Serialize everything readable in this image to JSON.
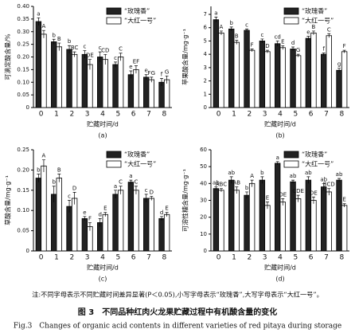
{
  "chart_data": [
    {
      "type": "bar",
      "panel": "(a)",
      "ylabel": "可滴定酸含量/%",
      "xlabel": "贮藏时间/d",
      "categories": [
        "0",
        "1",
        "2",
        "3",
        "4",
        "5",
        "6",
        "7",
        "8"
      ],
      "ylim": [
        0,
        0.4
      ],
      "yticks": [
        0,
        0.05,
        {
          "value": 0.1,
          "label": "0.10"
        },
        0.15,
        {
          "value": 0.2,
          "label": "0.20"
        },
        0.25,
        {
          "value": 0.3,
          "label": "0.30"
        },
        0.35,
        {
          "value": 0.4,
          "label": "0.40"
        }
      ],
      "legend": "upper right",
      "series": [
        {
          "name": "“玫瑰香”",
          "color": "#222222",
          "values": [
            0.34,
            0.26,
            0.23,
            0.21,
            0.2,
            0.17,
            0.13,
            0.12,
            0.1
          ],
          "errors": [
            0.015,
            0.01,
            0.015,
            0.015,
            0.02,
            0.01,
            0.015,
            0.01,
            0.015
          ],
          "letters": [
            "a",
            "b",
            "b",
            "c",
            "c",
            "c",
            "e",
            "e",
            "f"
          ]
        },
        {
          "name": "“大红一号”",
          "color": "#ffffff",
          "values": [
            0.29,
            0.24,
            0.21,
            0.17,
            0.19,
            0.2,
            0.15,
            0.11,
            0.11
          ],
          "errors": [
            0.015,
            0.015,
            0.01,
            0.02,
            0.02,
            0.015,
            0.015,
            0.01,
            0.015
          ],
          "letters": [
            "A",
            "B",
            "BC",
            "DE",
            "CD",
            "C",
            "EF",
            "FG",
            "G"
          ]
        }
      ]
    },
    {
      "type": "bar",
      "panel": "(b)",
      "ylabel": "苹果酸含量/mg·g⁻¹",
      "xlabel": "贮藏时间/d",
      "categories": [
        "0",
        "1",
        "2",
        "3",
        "4",
        "5",
        "6",
        "7",
        "8"
      ],
      "ylim": [
        0,
        7.6
      ],
      "yticks": [
        0,
        1,
        2,
        3,
        4,
        5,
        6,
        7
      ],
      "legend": "upper right",
      "series": [
        {
          "name": "“玫瑰香”",
          "color": "#222222",
          "values": [
            6.6,
            5.9,
            5.8,
            5.0,
            4.8,
            4.4,
            5.2,
            4.0,
            2.8
          ],
          "errors": [
            0.2,
            0.15,
            0.1,
            0.15,
            0.2,
            0.15,
            0.15,
            0.1,
            0.15
          ],
          "letters": [
            "a",
            "b",
            "c",
            "c",
            "cd",
            "d",
            "e",
            "f",
            "g"
          ]
        },
        {
          "name": "“大红一号”",
          "color": "#ffffff",
          "values": [
            5.6,
            4.9,
            4.3,
            4.2,
            4.5,
            3.9,
            5.6,
            5.4,
            4.2
          ],
          "errors": [
            0.15,
            0.15,
            0.1,
            0.1,
            0.15,
            0.1,
            0.15,
            0.15,
            0.1
          ],
          "letters": [
            "A",
            "B",
            "F",
            "D",
            "E",
            "G",
            "B",
            "C",
            "F"
          ]
        }
      ]
    },
    {
      "type": "bar",
      "panel": "(c)",
      "ylabel": "草酸含量/mg·g⁻¹",
      "xlabel": "贮藏时间/d",
      "categories": [
        "0",
        "1",
        "2",
        "3",
        "4",
        "5",
        "6",
        "7",
        "8"
      ],
      "ylim": [
        0,
        0.25
      ],
      "yticks": [
        0,
        0.05,
        {
          "value": 0.1,
          "label": "0.10"
        },
        0.15,
        {
          "value": 0.2,
          "label": "0.20"
        },
        0.25
      ],
      "legend": "upper right",
      "series": [
        {
          "name": "“玫瑰香”",
          "color": "#222222",
          "values": [
            0.18,
            0.14,
            0.11,
            0.08,
            0.07,
            0.14,
            0.17,
            0.13,
            0.08
          ],
          "errors": [
            0.01,
            0.02,
            0.015,
            0.005,
            0.01,
            0.01,
            0.005,
            0.01,
            0.005
          ],
          "letters": [
            "b",
            "b",
            "c",
            "e",
            "d",
            "a",
            "a",
            "c",
            "d"
          ]
        },
        {
          "name": "“大红一号”",
          "color": "#ffffff",
          "values": [
            0.21,
            0.18,
            0.13,
            0.06,
            0.09,
            0.15,
            0.15,
            0.13,
            0.09
          ],
          "errors": [
            0.015,
            0.01,
            0.015,
            0.01,
            0.005,
            0.01,
            0.01,
            0.005,
            0.005
          ],
          "letters": [
            "A",
            "B",
            "D",
            "F",
            "E",
            "C",
            "C",
            "D",
            "E"
          ]
        }
      ]
    },
    {
      "type": "bar",
      "panel": "(d)",
      "ylabel": "可溶性糖含量/mg·g⁻¹",
      "xlabel": "贮藏时间/d",
      "categories": [
        "0",
        "1",
        "2",
        "3",
        "4",
        "5",
        "6",
        "7",
        "8"
      ],
      "ylim": [
        0,
        60
      ],
      "yticks": [
        0,
        10,
        20,
        30,
        40,
        50,
        60
      ],
      "legend": "upper right",
      "series": [
        {
          "name": "“玫瑰香”",
          "color": "#222222",
          "values": [
            37,
            42,
            33,
            42,
            52,
            41,
            42,
            38,
            42
          ],
          "errors": [
            1,
            2,
            2,
            2,
            1,
            1,
            2,
            2,
            1
          ],
          "letters": [
            "ab",
            "ab",
            "b",
            "b",
            "a",
            "ab",
            "ab",
            "ab",
            "ab"
          ]
        },
        {
          "name": "“大红一号”",
          "color": "#ffffff",
          "values": [
            36,
            36,
            40,
            27,
            29,
            31,
            30,
            35,
            27
          ],
          "errors": [
            1,
            2,
            2,
            2,
            2,
            2,
            2,
            2,
            1
          ],
          "letters": [
            "ABC",
            "AB",
            "A",
            "E",
            "DE",
            "CDE",
            "DE",
            "BCD",
            "E"
          ]
        }
      ]
    }
  ],
  "note": "注:不同字母表示不同贮藏时间差异显著(P＜0.05),小写字母表示“玫瑰香”,大写字母表示“大红一号”。",
  "caption": "图 3　不同品种红肉火龙果贮藏过程中有机酸含量的变化",
  "caption_en": "Fig.3　Changes of organic acid contents in different varieties of red pitaya during storage"
}
